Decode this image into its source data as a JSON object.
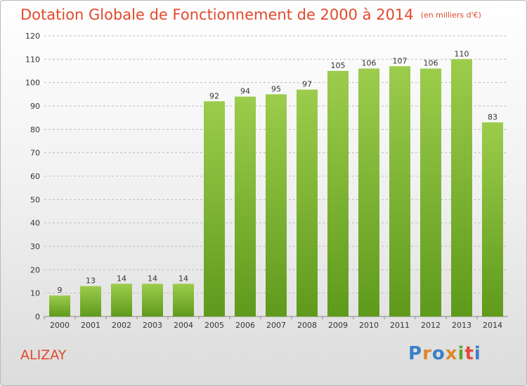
{
  "header": {
    "title": "Dotation Globale de Fonctionnement de 2000 à 2014",
    "unit_note": "(en milliers d'€)"
  },
  "footer": {
    "commune": "ALIZAY",
    "logo_text": "Proxiti",
    "logo_colors": [
      "#3a7fc4",
      "#e0872a",
      "#3a7fc4",
      "#e0872a",
      "#5aa832",
      "#e04a3a",
      "#3a7fc4"
    ]
  },
  "colors": {
    "title": "#e14a2c",
    "bar_top": "#9ccc4c",
    "bar_bottom": "#5f9a1c",
    "grid": "#bdbdbd",
    "axis_text": "#333333"
  },
  "chart_data": {
    "type": "bar",
    "title": "Dotation Globale de Fonctionnement de 2000 à 2014",
    "subtitle": "(en milliers d'€)",
    "categories": [
      "2000",
      "2001",
      "2002",
      "2003",
      "2004",
      "2005",
      "2006",
      "2007",
      "2008",
      "2009",
      "2010",
      "2011",
      "2012",
      "2013",
      "2014"
    ],
    "values": [
      9,
      13,
      14,
      14,
      14,
      92,
      94,
      95,
      97,
      105,
      106,
      107,
      106,
      110,
      83
    ],
    "ylim": [
      0,
      120
    ],
    "yticks": [
      0,
      10,
      20,
      30,
      40,
      50,
      60,
      70,
      80,
      90,
      100,
      110,
      120
    ],
    "grid": true,
    "data_labels": true,
    "xlabel": "",
    "ylabel": ""
  }
}
